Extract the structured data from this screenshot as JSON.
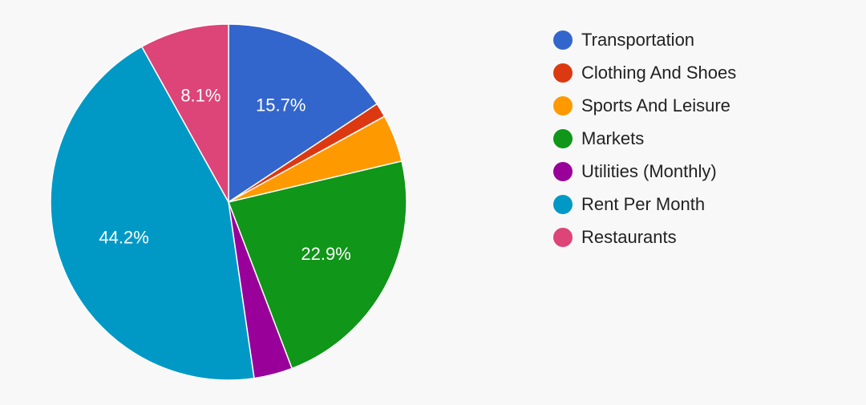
{
  "chart_data": {
    "type": "pie",
    "title": "",
    "legend_position": "right",
    "slices": [
      {
        "name": "Transportation",
        "value": 15.7,
        "label": "15.7%",
        "color": "#3366cc"
      },
      {
        "name": "Clothing And Shoes",
        "value": 1.3,
        "label": "",
        "color": "#dc3912"
      },
      {
        "name": "Sports And Leisure",
        "value": 4.3,
        "label": "",
        "color": "#ff9900"
      },
      {
        "name": "Markets",
        "value": 22.9,
        "label": "22.9%",
        "color": "#109618"
      },
      {
        "name": "Utilities (Monthly)",
        "value": 3.5,
        "label": "",
        "color": "#990099"
      },
      {
        "name": "Rent Per Month",
        "value": 44.2,
        "label": "44.2%",
        "color": "#0099c6"
      },
      {
        "name": "Restaurants",
        "value": 8.1,
        "label": "8.1%",
        "color": "#dd4477"
      }
    ]
  }
}
